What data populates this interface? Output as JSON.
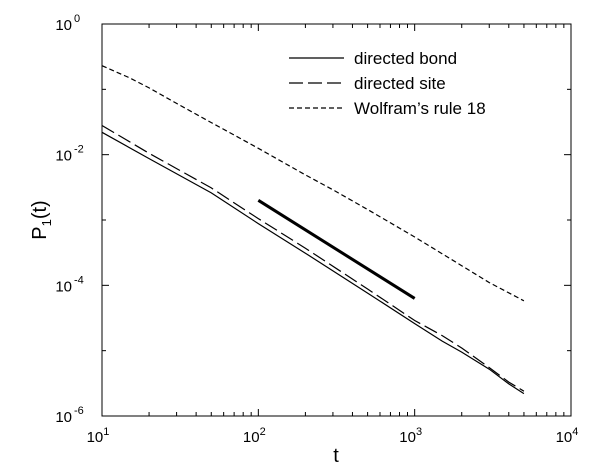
{
  "chart_data": {
    "type": "line",
    "title": "",
    "xlabel": "t",
    "ylabel": {
      "base": "P",
      "subscript": "1",
      "suffix": "(t)"
    },
    "x_scale": "log",
    "y_scale": "log",
    "xlim": [
      10,
      10000
    ],
    "ylim": [
      1e-06,
      1
    ],
    "x_ticks": [
      {
        "value": 10,
        "base": "10",
        "exp": "1"
      },
      {
        "value": 100,
        "base": "10",
        "exp": "2"
      },
      {
        "value": 1000,
        "base": "10",
        "exp": "3"
      },
      {
        "value": 10000,
        "base": "10",
        "exp": "4"
      }
    ],
    "y_ticks": [
      {
        "value": 1e-06,
        "base": "10",
        "exp": "-6"
      },
      {
        "value": 0.0001,
        "base": "10",
        "exp": "-4"
      },
      {
        "value": 0.01,
        "base": "10",
        "exp": "-2"
      },
      {
        "value": 1,
        "base": "10",
        "exp": "0"
      }
    ],
    "legend_position": "top-right",
    "grid": false,
    "series": [
      {
        "name": "directed bond",
        "style": "solid",
        "color": "#000000",
        "x": [
          10,
          20,
          50,
          100,
          200,
          500,
          1000,
          1500,
          2000,
          3000,
          4000,
          5000
        ],
        "y": [
          0.022,
          0.0087,
          0.0026,
          0.00088,
          0.00031,
          7.6e-05,
          2.6e-05,
          1.4e-05,
          9.5e-06,
          5.2e-06,
          3.1e-06,
          2.2e-06
        ]
      },
      {
        "name": "directed site",
        "style": "dashed",
        "color": "#000000",
        "x": [
          10,
          20,
          50,
          100,
          200,
          500,
          1000,
          1500,
          2000,
          3000,
          4000,
          5000
        ],
        "y": [
          0.028,
          0.0105,
          0.0031,
          0.00105,
          0.00037,
          8.8e-05,
          2.9e-05,
          1.7e-05,
          1.1e-05,
          5.5e-06,
          3.3e-06,
          2.4e-06
        ]
      },
      {
        "name": "Wolfram’s rule 18",
        "style": "dotted",
        "color": "#000000",
        "x": [
          10,
          15,
          20,
          30,
          50,
          70,
          100,
          200,
          300,
          500,
          1000,
          2000,
          3000,
          5000
        ],
        "y": [
          0.23,
          0.15,
          0.105,
          0.061,
          0.031,
          0.02,
          0.0125,
          0.0049,
          0.0029,
          0.00145,
          0.00055,
          0.0002,
          0.00011,
          5.8e-05
        ]
      }
    ],
    "reference_line": {
      "style": "thick-solid",
      "x": [
        100,
        1000
      ],
      "y": [
        0.002,
        6.3e-05
      ]
    }
  }
}
